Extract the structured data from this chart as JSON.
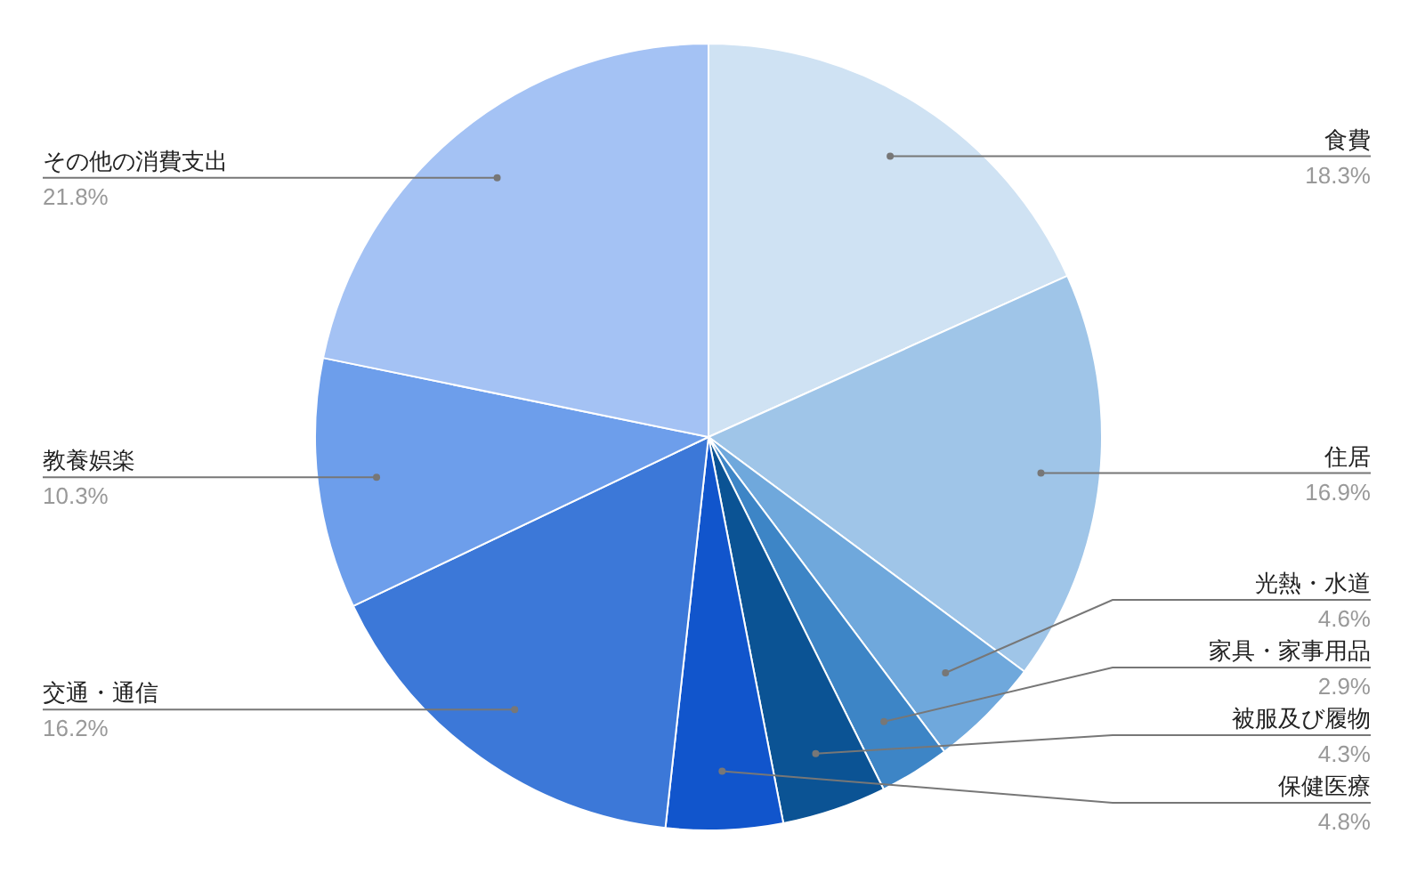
{
  "chart_data": {
    "type": "pie",
    "categories": [
      "食費",
      "住居",
      "光熱・水道",
      "家具・家事用品",
      "被服及び履物",
      "保健医療",
      "交通・通信",
      "教養娯楽",
      "その他の消費支出"
    ],
    "values": [
      18.3,
      16.9,
      4.6,
      2.9,
      4.3,
      4.8,
      16.2,
      10.3,
      21.8
    ],
    "value_labels": [
      "18.3%",
      "16.9%",
      "4.6%",
      "2.9%",
      "4.3%",
      "4.8%",
      "16.2%",
      "10.3%",
      "21.8%"
    ],
    "colors": [
      "#cfe2f3",
      "#9fc5e8",
      "#6fa8dc",
      "#3d85c6",
      "#0b5394",
      "#1155cc",
      "#3c78d8",
      "#6d9eeb",
      "#a4c2f4"
    ],
    "legend": false
  }
}
